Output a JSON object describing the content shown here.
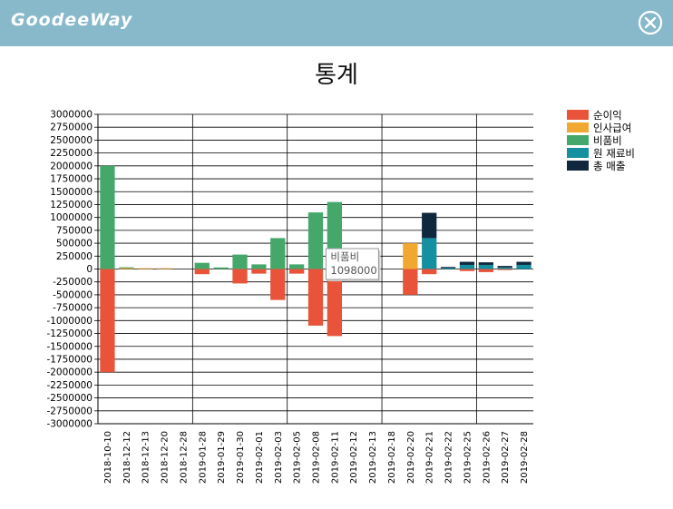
{
  "header": {
    "brand": "GoodeeWay",
    "close_icon": "close-circle-icon",
    "bg_color": "#87b9cb"
  },
  "chart_title": "통계",
  "chart_data": {
    "type": "bar",
    "stacked": true,
    "title": "통계",
    "xlabel": "",
    "ylabel": "",
    "ylim": [
      -3000000,
      3000000
    ],
    "ytick_step": 250000,
    "yticks": [
      "3000000",
      "2750000",
      "2500000",
      "2250000",
      "2000000",
      "1750000",
      "1500000",
      "1250000",
      "1000000",
      "750000",
      "500000",
      "250000",
      "0",
      "-250000",
      "-500000",
      "-750000",
      "-1000000",
      "-1250000",
      "-1500000",
      "-1750000",
      "-2000000",
      "-2250000",
      "-2500000",
      "-2750000",
      "-3000000"
    ],
    "grid": true,
    "legend_position": "top-right",
    "categories": [
      "2018-10-10",
      "2018-12-12",
      "2018-12-13",
      "2018-12-20",
      "2018-12-28",
      "2019-01-28",
      "2019-01-29",
      "2019-01-30",
      "2019-02-01",
      "2019-02-03",
      "2019-02-05",
      "2019-02-08",
      "2019-02-11",
      "2019-02-12",
      "2019-02-13",
      "2019-02-18",
      "2019-02-20",
      "2019-02-21",
      "2019-02-22",
      "2019-02-25",
      "2019-02-26",
      "2019-02-27",
      "2019-02-28"
    ],
    "series": [
      {
        "name": "순이익",
        "color": "#e8533a",
        "values": [
          -2000000,
          0,
          0,
          0,
          0,
          -100000,
          0,
          -280000,
          -90000,
          -600000,
          -90000,
          -1098000,
          -1300000,
          0,
          0,
          0,
          -500000,
          -100000,
          0,
          -40000,
          -60000,
          -20000,
          0
        ]
      },
      {
        "name": "인사급여",
        "color": "#f0a830",
        "values": [
          0,
          20000,
          15000,
          15000,
          0,
          0,
          0,
          0,
          0,
          0,
          0,
          0,
          0,
          0,
          0,
          0,
          500000,
          0,
          0,
          0,
          0,
          0,
          0
        ]
      },
      {
        "name": "비품비",
        "color": "#45a86a",
        "values": [
          2000000,
          15000,
          0,
          0,
          0,
          120000,
          30000,
          280000,
          90000,
          600000,
          90000,
          1098000,
          1300000,
          0,
          0,
          0,
          0,
          0,
          0,
          0,
          0,
          0,
          0
        ]
      },
      {
        "name": "원 재료비",
        "color": "#1590a0",
        "values": [
          0,
          0,
          0,
          0,
          0,
          0,
          0,
          0,
          0,
          0,
          0,
          0,
          0,
          0,
          0,
          0,
          0,
          600000,
          20000,
          80000,
          80000,
          30000,
          80000
        ]
      },
      {
        "name": "총 매출",
        "color": "#10283e",
        "values": [
          0,
          0,
          0,
          0,
          0,
          0,
          0,
          0,
          0,
          0,
          0,
          0,
          0,
          0,
          0,
          0,
          0,
          490000,
          20000,
          60000,
          50000,
          30000,
          60000
        ]
      }
    ],
    "tooltip": {
      "series": "비품비",
      "value": "1098000",
      "category": "2019-02-08"
    }
  }
}
